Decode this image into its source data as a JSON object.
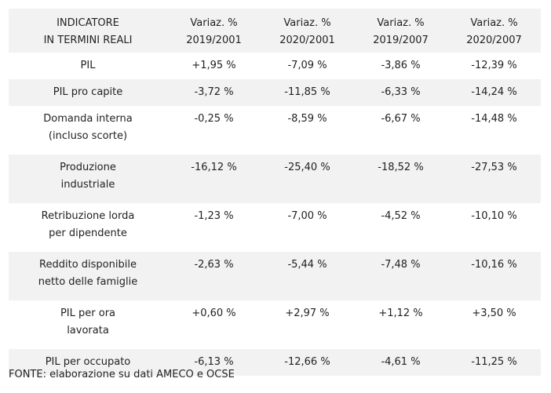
{
  "table": {
    "header": {
      "indicator": [
        "INDICATORE",
        "IN TERMINI REALI"
      ],
      "columns": [
        [
          "Variaz. %",
          "2019/2001"
        ],
        [
          "Variaz. %",
          "2020/2001"
        ],
        [
          "Variaz. %",
          "2019/2007"
        ],
        [
          "Variaz. %",
          "2020/2007"
        ]
      ]
    },
    "rows": [
      {
        "label": [
          "PIL"
        ],
        "values": [
          "+1,95 %",
          "-7,09 %",
          "-3,86 %",
          "-12,39 %"
        ]
      },
      {
        "label": [
          "PIL pro capite"
        ],
        "values": [
          "-3,72 %",
          "-11,85 %",
          "-6,33 %",
          "-14,24 %"
        ]
      },
      {
        "label": [
          "Domanda interna",
          "(incluso scorte)"
        ],
        "values": [
          "-0,25 %",
          "-8,59 %",
          "-6,67 %",
          "-14,48 %"
        ]
      },
      {
        "label": [
          "Produzione",
          "industriale"
        ],
        "values": [
          "-16,12 %",
          "-25,40 %",
          "-18,52 %",
          "-27,53 %"
        ]
      },
      {
        "label": [
          "Retribuzione lorda",
          "per dipendente"
        ],
        "values": [
          "-1,23 %",
          "-7,00 %",
          "-4,52 %",
          "-10,10 %"
        ]
      },
      {
        "label": [
          "Reddito disponibile",
          "netto delle famiglie"
        ],
        "values": [
          "-2,63 %",
          "-5,44 %",
          "-7,48 %",
          "-10,16 %"
        ]
      },
      {
        "label": [
          "PIL per ora",
          "lavorata"
        ],
        "values": [
          "+0,60 %",
          "+2,97 %",
          "+1,12 %",
          "+3,50 %"
        ]
      },
      {
        "label": [
          "PIL per occupato"
        ],
        "values": [
          "-6,13 %",
          "-12,66 %",
          "-4,61 %",
          "-11,25 %"
        ]
      }
    ]
  },
  "source": "FONTE: elaborazione su dati AMECO e OCSE"
}
